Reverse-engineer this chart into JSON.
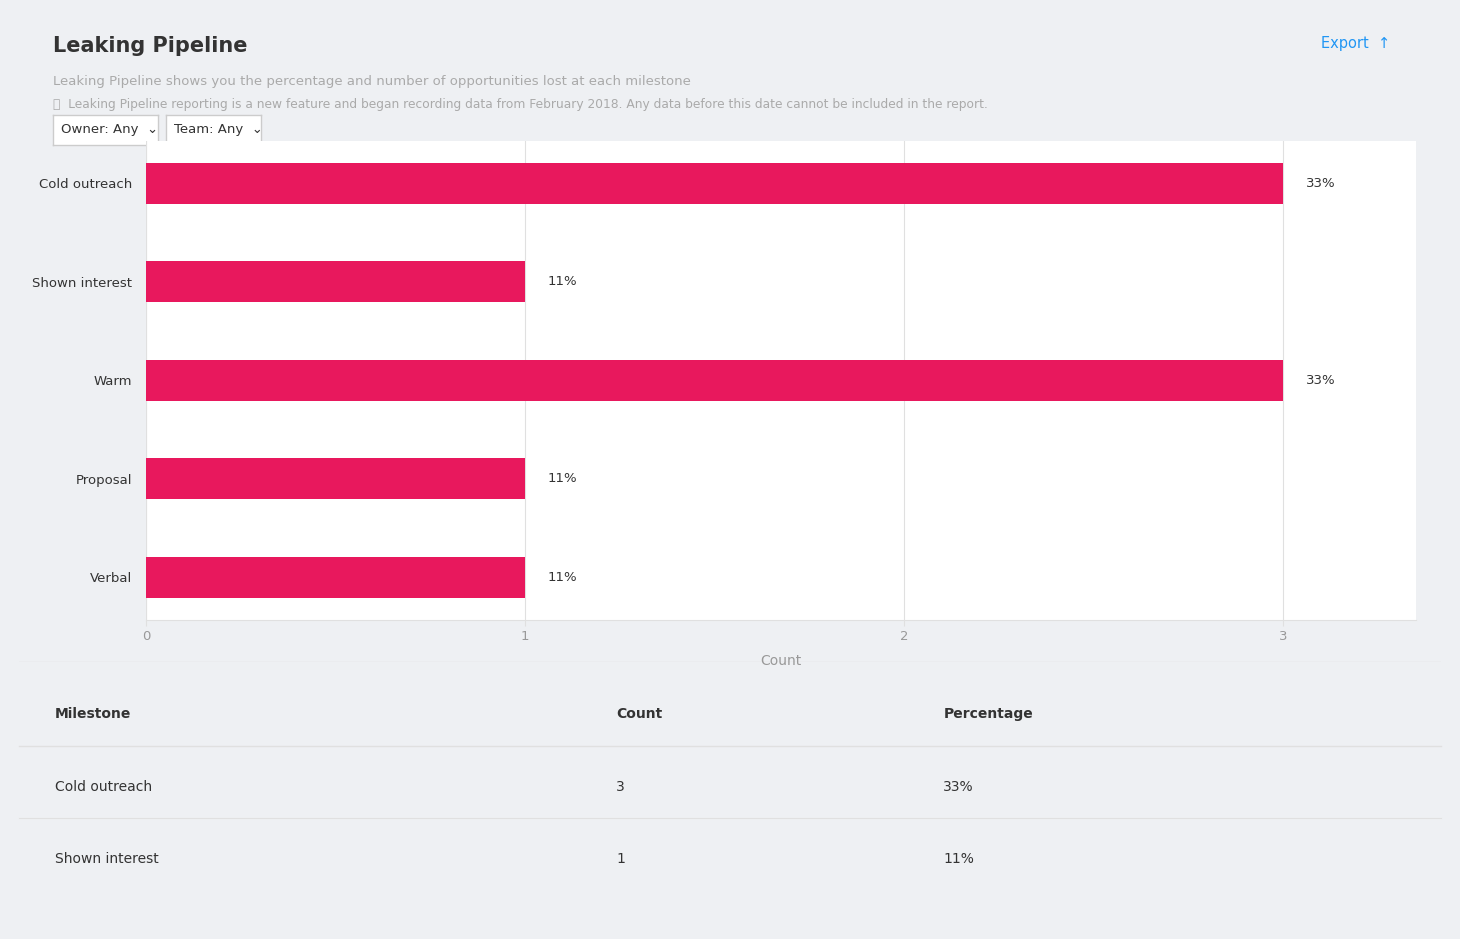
{
  "title": "Leaking Pipeline",
  "subtitle": "Leaking Pipeline shows you the percentage and number of opportunities lost at each milestone",
  "note": "Leaking Pipeline reporting is a new feature and began recording data from February 2018. Any data before this date cannot be included in the report.",
  "owner_label": "Owner: Any",
  "team_label": "Team: Any",
  "export_label": "Export",
  "categories": [
    "Cold outreach",
    "Shown interest",
    "Warm",
    "Proposal",
    "Verbal"
  ],
  "counts": [
    3,
    1,
    3,
    1,
    1
  ],
  "percentages": [
    "33%",
    "11%",
    "33%",
    "11%",
    "11%"
  ],
  "bar_color": "#e8185d",
  "xlabel": "Count",
  "xlim": [
    0,
    3.35
  ],
  "xticks": [
    0,
    1,
    2,
    3
  ],
  "background_color": "#eef0f3",
  "panel_color": "#ffffff",
  "table_headers": [
    "Milestone",
    "Count",
    "Percentage"
  ],
  "table_rows": [
    [
      "Cold outreach",
      "3",
      "33%"
    ],
    [
      "Shown interest",
      "1",
      "11%"
    ]
  ],
  "grid_color": "#e0e0e0",
  "label_color": "#999999",
  "text_color": "#333333",
  "note_color": "#aaaaaa",
  "blue_color": "#2196F3",
  "bar_height": 0.42
}
